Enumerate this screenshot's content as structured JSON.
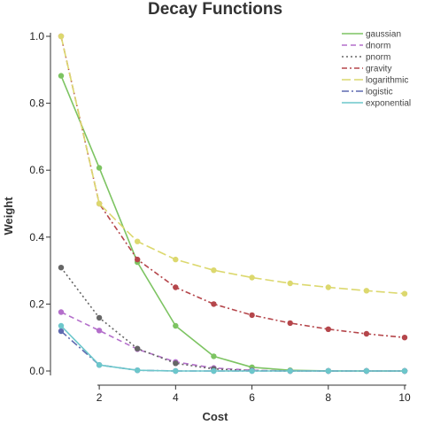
{
  "chart_data": {
    "type": "line",
    "title": "Decay Functions",
    "xlabel": "Cost",
    "ylabel": "Weight",
    "x": [
      1,
      2,
      3,
      4,
      5,
      6,
      7,
      8,
      9,
      10
    ],
    "xlim": [
      1,
      10
    ],
    "ylim": [
      0,
      1
    ],
    "xticks": [
      2,
      4,
      6,
      8,
      10
    ],
    "xtick_labels": [
      "2",
      "4",
      "6",
      "8",
      "10"
    ],
    "yticks": [
      0,
      0.2,
      0.4,
      0.6,
      0.8,
      1.0
    ],
    "ytick_labels": [
      "0.0",
      "0.2",
      "0.4",
      "0.6",
      "0.8",
      "1.0"
    ],
    "grid": false,
    "legend_position": "top-right",
    "series": [
      {
        "name": "gaussian",
        "color": "#7dc462",
        "dash": "solid",
        "values": [
          0.882,
          0.607,
          0.325,
          0.135,
          0.044,
          0.011,
          0.002,
          0.0003,
          0.0,
          0.0
        ]
      },
      {
        "name": "dnorm",
        "color": "#b46fcb",
        "dash": "dashed",
        "values": [
          0.176,
          0.121,
          0.065,
          0.027,
          0.009,
          0.002,
          0.0,
          0.0,
          0.0,
          0.0
        ]
      },
      {
        "name": "pnorm",
        "color": "#666666",
        "dash": "dotted",
        "values": [
          0.309,
          0.159,
          0.067,
          0.023,
          0.006,
          0.001,
          0.0,
          0.0,
          0.0,
          0.0
        ]
      },
      {
        "name": "gravity",
        "color": "#b5464b",
        "dash": "dashdot",
        "values": [
          1.0,
          0.5,
          0.333,
          0.25,
          0.2,
          0.167,
          0.143,
          0.125,
          0.111,
          0.1
        ]
      },
      {
        "name": "logarithmic",
        "color": "#dcd86e",
        "dash": "longdash",
        "values": [
          1.0,
          0.5,
          0.387,
          0.333,
          0.301,
          0.279,
          0.262,
          0.25,
          0.24,
          0.231
        ]
      },
      {
        "name": "logistic",
        "color": "#5f6ab0",
        "dash": "dashdot2",
        "values": [
          0.119,
          0.018,
          0.002,
          0.0,
          0.0,
          0.0,
          0.0,
          0.0,
          0.0,
          0.0
        ]
      },
      {
        "name": "exponential",
        "color": "#6cc7cb",
        "dash": "solid",
        "values": [
          0.135,
          0.018,
          0.002,
          0.0,
          0.0,
          0.0,
          0.0,
          0.0,
          0.0,
          0.0
        ]
      }
    ]
  }
}
